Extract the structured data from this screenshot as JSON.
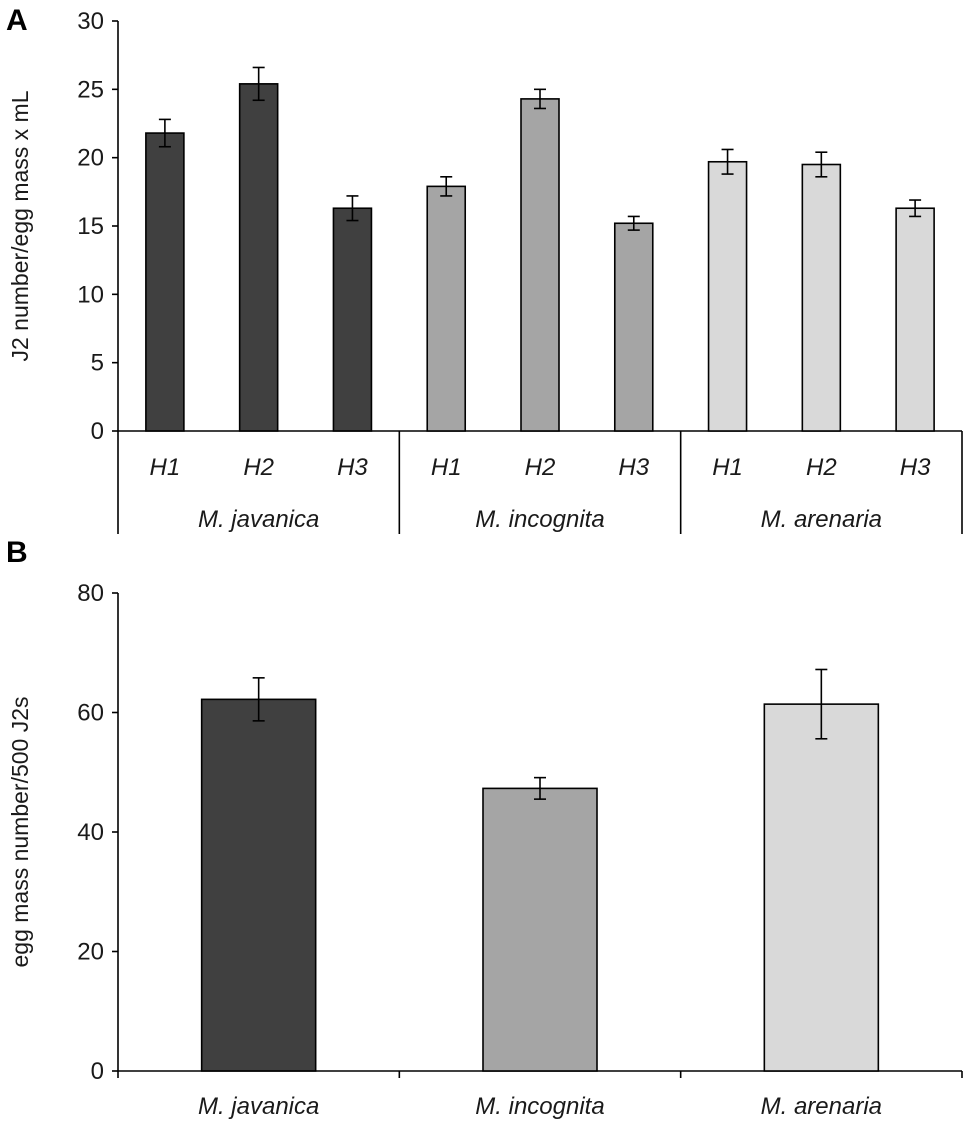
{
  "chart_data": [
    {
      "panel": "A",
      "type": "bar",
      "ylabel": "J2 number/egg mass x mL",
      "ylim": [
        0,
        30
      ],
      "yticks": [
        0,
        5,
        10,
        15,
        20,
        25,
        30
      ],
      "categories": [
        "H1",
        "H2",
        "H3",
        "H1",
        "H2",
        "H3",
        "H1",
        "H2",
        "H3"
      ],
      "groups": [
        {
          "name": "M. javanica",
          "color": "#404040",
          "categories": [
            "H1",
            "H2",
            "H3"
          ],
          "values": [
            21.8,
            25.4,
            16.3
          ],
          "errors": [
            1.0,
            1.2,
            0.9
          ]
        },
        {
          "name": "M. incognita",
          "color": "#a5a5a5",
          "categories": [
            "H1",
            "H2",
            "H3"
          ],
          "values": [
            17.9,
            24.3,
            15.2
          ],
          "errors": [
            0.7,
            0.7,
            0.5
          ]
        },
        {
          "name": "M. arenaria",
          "color": "#d9d9d9",
          "categories": [
            "H1",
            "H2",
            "H3"
          ],
          "values": [
            19.7,
            19.5,
            16.3
          ],
          "errors": [
            0.9,
            0.9,
            0.6
          ]
        }
      ]
    },
    {
      "panel": "B",
      "type": "bar",
      "ylabel": "egg mass number/500 J2s",
      "ylim": [
        0,
        80
      ],
      "yticks": [
        0,
        20,
        40,
        60,
        80
      ],
      "categories": [
        "M. javanica",
        "M. incognita",
        "M. arenaria"
      ],
      "values": [
        62.2,
        47.3,
        61.4
      ],
      "errors": [
        3.6,
        1.8,
        5.8
      ],
      "colors": [
        "#404040",
        "#a5a5a5",
        "#d9d9d9"
      ]
    }
  ]
}
